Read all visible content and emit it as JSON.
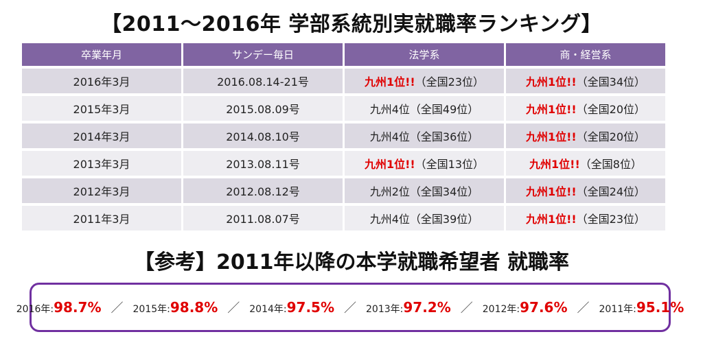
{
  "title": "【2011～2016年 学部系統別実就職率ランキング】",
  "table": {
    "headers": [
      "卒業年月",
      "サンデー毎日",
      "法学系",
      "商・経営系"
    ],
    "rows": [
      {
        "grad": "2016年3月",
        "issue": "2016.08.14-21号",
        "law_rank": "九州1位!!",
        "law_nat": "（全国23位）",
        "law_hl": true,
        "com_rank": "九州1位!!",
        "com_nat": "（全国34位）",
        "com_hl": true
      },
      {
        "grad": "2015年3月",
        "issue": "2015.08.09号",
        "law_rank": "九州4位",
        "law_nat": "（全国49位）",
        "law_hl": false,
        "com_rank": "九州1位!!",
        "com_nat": "（全国20位）",
        "com_hl": true
      },
      {
        "grad": "2014年3月",
        "issue": "2014.08.10号",
        "law_rank": "九州4位",
        "law_nat": "（全国36位）",
        "law_hl": false,
        "com_rank": "九州1位!!",
        "com_nat": "（全国20位）",
        "com_hl": true
      },
      {
        "grad": "2013年3月",
        "issue": "2013.08.11号",
        "law_rank": "九州1位!!",
        "law_nat": "（全国13位）",
        "law_hl": true,
        "com_rank": "九州1位!!",
        "com_nat": "（全国8位）",
        "com_hl": true
      },
      {
        "grad": "2012年3月",
        "issue": "2012.08.12号",
        "law_rank": "九州2位",
        "law_nat": "（全国34位）",
        "law_hl": false,
        "com_rank": "九州1位!!",
        "com_nat": "（全国24位）",
        "com_hl": true
      },
      {
        "grad": "2011年3月",
        "issue": "2011.08.07号",
        "law_rank": "九州4位",
        "law_nat": "（全国39位）",
        "law_hl": false,
        "com_rank": "九州1位!!",
        "com_nat": "（全国23位）",
        "com_hl": true
      }
    ]
  },
  "reference": {
    "title": "【参考】2011年以降の本学就職希望者 就職率",
    "separator": "／",
    "rates": [
      {
        "year": "2016年:",
        "value": "98.7%"
      },
      {
        "year": "2015年:",
        "value": "98.8%"
      },
      {
        "year": "2014年:",
        "value": "97.5%"
      },
      {
        "year": "2013年:",
        "value": "97.2%"
      },
      {
        "year": "2012年:",
        "value": "97.6%"
      },
      {
        "year": "2011年:",
        "value": "95.1%"
      }
    ]
  },
  "colors": {
    "header_bg": "#8064a2",
    "row_odd": "#dcd9e2",
    "row_even": "#eeedf1",
    "highlight": "#e00000",
    "box_border": "#7030a0"
  }
}
